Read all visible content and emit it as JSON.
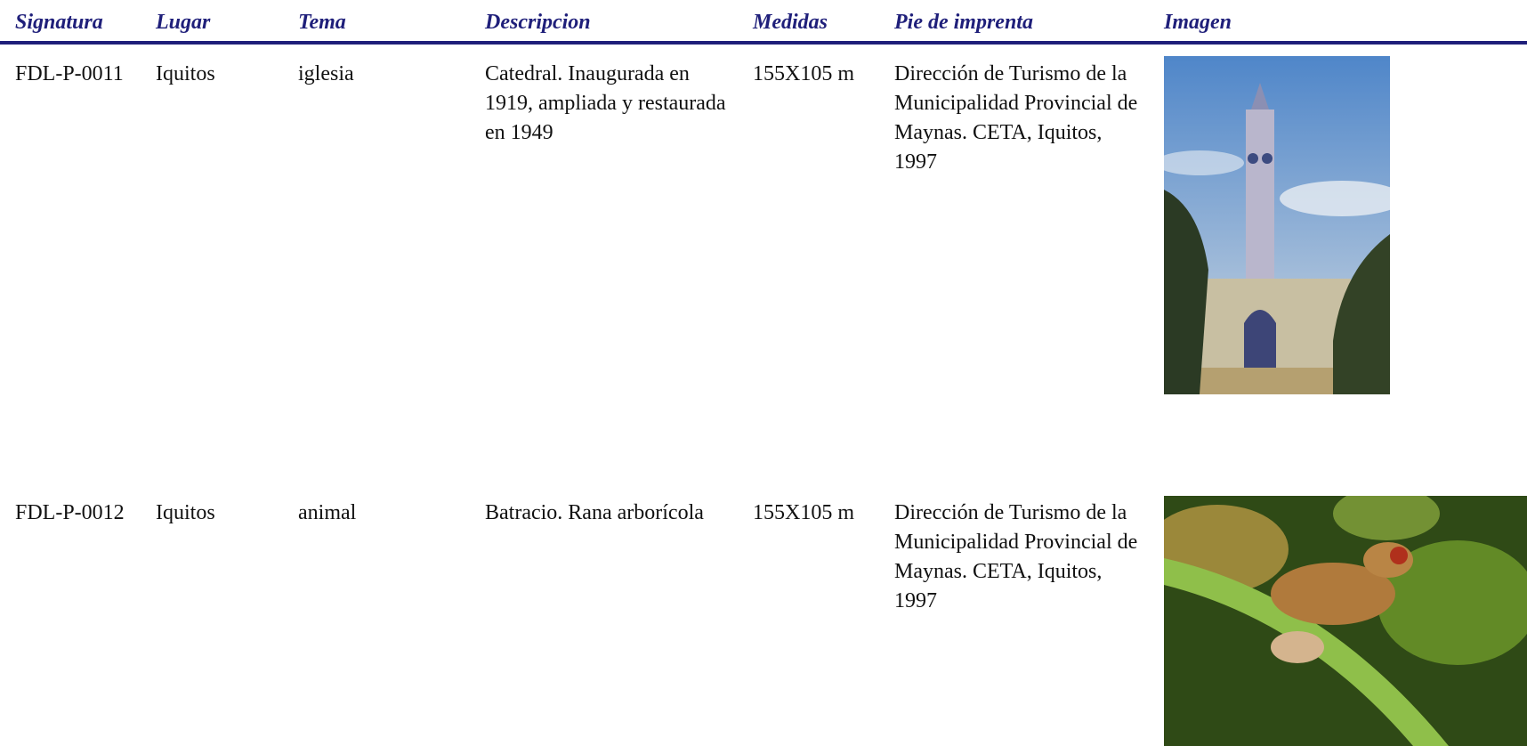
{
  "table": {
    "headers": [
      "Signatura",
      "Lugar",
      "Tema",
      "Descripcion",
      "Medidas",
      "Pie de imprenta",
      "Imagen"
    ],
    "rows": [
      [
        "FDL-P-0011",
        "Iquitos",
        "iglesia",
        "Catedral. Inaugurada en 1919, ampliada y restaurada en 1949",
        "155X105 m",
        "Dirección de Turismo de la Municipalidad Provincial de Maynas. CETA, Iquitos, 1997"
      ],
      [
        "FDL-P-0012",
        "Iquitos",
        "animal",
        "Batracio. Rana arborícola",
        "155X105 m",
        "Dirección de Turismo de la Municipalidad Provincial de Maynas. CETA, Iquitos, 1997"
      ]
    ]
  }
}
